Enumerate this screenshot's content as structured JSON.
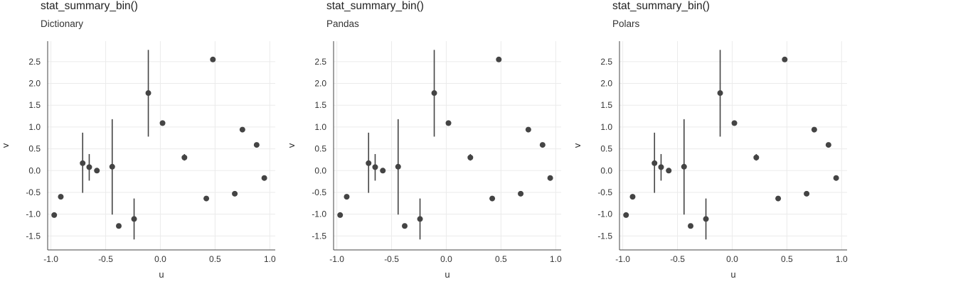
{
  "chart_data": [
    {
      "type": "scatter",
      "title": "stat_summary_bin()",
      "subtitle": "Dictionary",
      "xlabel": "u",
      "ylabel": "v",
      "xlim": [
        -1.03,
        1.05
      ],
      "ylim": [
        -1.82,
        2.97
      ],
      "xticks": [
        -1.0,
        -0.5,
        0.0,
        0.5,
        1.0
      ],
      "xtick_labels": [
        "-1.0",
        "-0.5",
        "0.0",
        "0.5",
        "1.0"
      ],
      "yticks": [
        -1.5,
        -1.0,
        -0.5,
        0.0,
        0.5,
        1.0,
        1.5,
        2.0,
        2.5
      ],
      "ytick_labels": [
        "-1.5",
        "-1.0",
        "-0.5",
        "0.0",
        "0.5",
        "1.0",
        "1.5",
        "2.0",
        "2.5"
      ],
      "grid": true,
      "points": [
        {
          "x": -0.97,
          "y": -1.02,
          "ymin": -1.02,
          "ymax": -1.02
        },
        {
          "x": -0.91,
          "y": -0.6,
          "ymin": -0.6,
          "ymax": -0.6
        },
        {
          "x": -0.71,
          "y": 0.17,
          "ymin": -0.51,
          "ymax": 0.87
        },
        {
          "x": -0.65,
          "y": 0.08,
          "ymin": -0.23,
          "ymax": 0.38
        },
        {
          "x": -0.58,
          "y": 0.0,
          "ymin": 0.0,
          "ymax": 0.0
        },
        {
          "x": -0.44,
          "y": 0.09,
          "ymin": -1.01,
          "ymax": 1.18
        },
        {
          "x": -0.38,
          "y": -1.27,
          "ymin": -1.27,
          "ymax": -1.27
        },
        {
          "x": -0.24,
          "y": -1.11,
          "ymin": -1.58,
          "ymax": -0.64
        },
        {
          "x": -0.11,
          "y": 1.78,
          "ymin": 0.78,
          "ymax": 2.77
        },
        {
          "x": 0.02,
          "y": 1.09,
          "ymin": 1.09,
          "ymax": 1.09
        },
        {
          "x": 0.22,
          "y": 0.3,
          "ymin": 0.23,
          "ymax": 0.38
        },
        {
          "x": 0.42,
          "y": -0.64,
          "ymin": -0.64,
          "ymax": -0.64
        },
        {
          "x": 0.48,
          "y": 2.55,
          "ymin": 2.55,
          "ymax": 2.55
        },
        {
          "x": 0.68,
          "y": -0.53,
          "ymin": -0.53,
          "ymax": -0.53
        },
        {
          "x": 0.75,
          "y": 0.94,
          "ymin": 0.94,
          "ymax": 0.94
        },
        {
          "x": 0.88,
          "y": 0.59,
          "ymin": 0.59,
          "ymax": 0.59
        },
        {
          "x": 0.95,
          "y": -0.17,
          "ymin": -0.17,
          "ymax": -0.17
        }
      ]
    },
    {
      "type": "scatter",
      "title": "stat_summary_bin()",
      "subtitle": "Pandas",
      "xlabel": "u",
      "ylabel": "v",
      "xlim": [
        -1.03,
        1.05
      ],
      "ylim": [
        -1.82,
        2.97
      ],
      "xticks": [
        -1.0,
        -0.5,
        0.0,
        0.5,
        1.0
      ],
      "xtick_labels": [
        "-1.0",
        "-0.5",
        "0.0",
        "0.5",
        "1.0"
      ],
      "yticks": [
        -1.5,
        -1.0,
        -0.5,
        0.0,
        0.5,
        1.0,
        1.5,
        2.0,
        2.5
      ],
      "ytick_labels": [
        "-1.5",
        "-1.0",
        "-0.5",
        "0.0",
        "0.5",
        "1.0",
        "1.5",
        "2.0",
        "2.5"
      ],
      "grid": true,
      "points": [
        {
          "x": -0.97,
          "y": -1.02,
          "ymin": -1.02,
          "ymax": -1.02
        },
        {
          "x": -0.91,
          "y": -0.6,
          "ymin": -0.6,
          "ymax": -0.6
        },
        {
          "x": -0.71,
          "y": 0.17,
          "ymin": -0.51,
          "ymax": 0.87
        },
        {
          "x": -0.65,
          "y": 0.08,
          "ymin": -0.23,
          "ymax": 0.38
        },
        {
          "x": -0.58,
          "y": 0.0,
          "ymin": 0.0,
          "ymax": 0.0
        },
        {
          "x": -0.44,
          "y": 0.09,
          "ymin": -1.01,
          "ymax": 1.18
        },
        {
          "x": -0.38,
          "y": -1.27,
          "ymin": -1.27,
          "ymax": -1.27
        },
        {
          "x": -0.24,
          "y": -1.11,
          "ymin": -1.58,
          "ymax": -0.64
        },
        {
          "x": -0.11,
          "y": 1.78,
          "ymin": 0.78,
          "ymax": 2.77
        },
        {
          "x": 0.02,
          "y": 1.09,
          "ymin": 1.09,
          "ymax": 1.09
        },
        {
          "x": 0.22,
          "y": 0.3,
          "ymin": 0.23,
          "ymax": 0.38
        },
        {
          "x": 0.42,
          "y": -0.64,
          "ymin": -0.64,
          "ymax": -0.64
        },
        {
          "x": 0.48,
          "y": 2.55,
          "ymin": 2.55,
          "ymax": 2.55
        },
        {
          "x": 0.68,
          "y": -0.53,
          "ymin": -0.53,
          "ymax": -0.53
        },
        {
          "x": 0.75,
          "y": 0.94,
          "ymin": 0.94,
          "ymax": 0.94
        },
        {
          "x": 0.88,
          "y": 0.59,
          "ymin": 0.59,
          "ymax": 0.59
        },
        {
          "x": 0.95,
          "y": -0.17,
          "ymin": -0.17,
          "ymax": -0.17
        }
      ]
    },
    {
      "type": "scatter",
      "title": "stat_summary_bin()",
      "subtitle": "Polars",
      "xlabel": "u",
      "ylabel": "v",
      "xlim": [
        -1.03,
        1.05
      ],
      "ylim": [
        -1.82,
        2.97
      ],
      "xticks": [
        -1.0,
        -0.5,
        0.0,
        0.5,
        1.0
      ],
      "xtick_labels": [
        "-1.0",
        "-0.5",
        "0.0",
        "0.5",
        "1.0"
      ],
      "yticks": [
        -1.5,
        -1.0,
        -0.5,
        0.0,
        0.5,
        1.0,
        1.5,
        2.0,
        2.5
      ],
      "ytick_labels": [
        "-1.5",
        "-1.0",
        "-0.5",
        "0.0",
        "0.5",
        "1.0",
        "1.5",
        "2.0",
        "2.5"
      ],
      "grid": true,
      "points": [
        {
          "x": -0.97,
          "y": -1.02,
          "ymin": -1.02,
          "ymax": -1.02
        },
        {
          "x": -0.91,
          "y": -0.6,
          "ymin": -0.6,
          "ymax": -0.6
        },
        {
          "x": -0.71,
          "y": 0.17,
          "ymin": -0.51,
          "ymax": 0.87
        },
        {
          "x": -0.65,
          "y": 0.08,
          "ymin": -0.23,
          "ymax": 0.38
        },
        {
          "x": -0.58,
          "y": 0.0,
          "ymin": 0.0,
          "ymax": 0.0
        },
        {
          "x": -0.44,
          "y": 0.09,
          "ymin": -1.01,
          "ymax": 1.18
        },
        {
          "x": -0.38,
          "y": -1.27,
          "ymin": -1.27,
          "ymax": -1.27
        },
        {
          "x": -0.24,
          "y": -1.11,
          "ymin": -1.58,
          "ymax": -0.64
        },
        {
          "x": -0.11,
          "y": 1.78,
          "ymin": 0.78,
          "ymax": 2.77
        },
        {
          "x": 0.02,
          "y": 1.09,
          "ymin": 1.09,
          "ymax": 1.09
        },
        {
          "x": 0.22,
          "y": 0.3,
          "ymin": 0.23,
          "ymax": 0.38
        },
        {
          "x": 0.42,
          "y": -0.64,
          "ymin": -0.64,
          "ymax": -0.64
        },
        {
          "x": 0.48,
          "y": 2.55,
          "ymin": 2.55,
          "ymax": 2.55
        },
        {
          "x": 0.68,
          "y": -0.53,
          "ymin": -0.53,
          "ymax": -0.53
        },
        {
          "x": 0.75,
          "y": 0.94,
          "ymin": 0.94,
          "ymax": 0.94
        },
        {
          "x": 0.88,
          "y": 0.59,
          "ymin": 0.59,
          "ymax": 0.59
        },
        {
          "x": 0.95,
          "y": -0.17,
          "ymin": -0.17,
          "ymax": -0.17
        }
      ]
    }
  ],
  "colors": {
    "point": "#444444",
    "grid": "#ebebeb",
    "axis": "#444444",
    "text": "#333333"
  }
}
